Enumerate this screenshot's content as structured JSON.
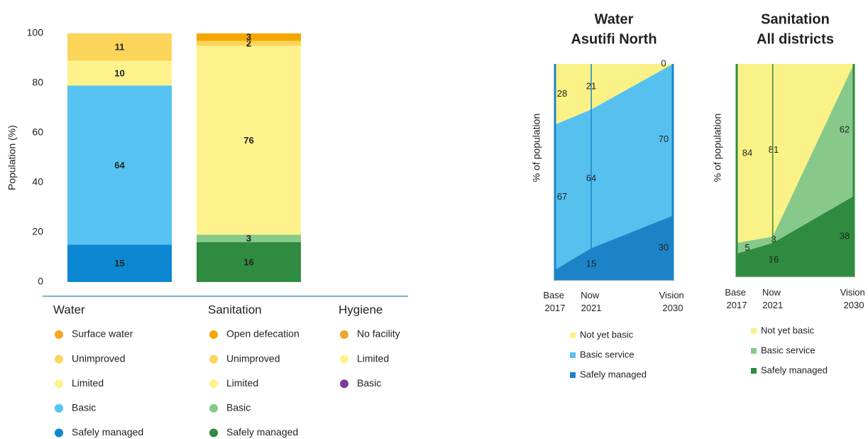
{
  "chart_data": [
    {
      "type": "stacked_bar",
      "y_label": "Population (%)",
      "ylim": [
        0,
        100
      ],
      "yticks": [
        0,
        20,
        40,
        60,
        80,
        100
      ],
      "groups": [
        {
          "name": "Water",
          "series": [
            {
              "name": "Surface water",
              "color": "#f4a81d"
            },
            {
              "name": "Unimproved",
              "color": "#fdd55b",
              "value": 11
            },
            {
              "name": "Limited",
              "color": "#fef28c",
              "value": 10
            },
            {
              "name": "Basic",
              "color": "#56c3f3",
              "value": 64
            },
            {
              "name": "Safely managed",
              "color": "#0b88d1",
              "value": 15
            }
          ]
        },
        {
          "name": "Sanitation",
          "series": [
            {
              "name": "Open defecation",
              "color": "#f5a700",
              "value": 3
            },
            {
              "name": "Unimproved",
              "color": "#fdd55b",
              "value": 2
            },
            {
              "name": "Limited",
              "color": "#fef28c",
              "value": 76
            },
            {
              "name": "Basic",
              "color": "#86c98a",
              "value": 3
            },
            {
              "name": "Safely managed",
              "color": "#2f8b3f",
              "value": 16
            }
          ]
        },
        {
          "name": "Hygiene",
          "series": [
            {
              "name": "No facility",
              "color": "#f0a52c"
            },
            {
              "name": "Limited",
              "color": "#fef28c"
            },
            {
              "name": "Basic",
              "color": "#7b3b96"
            }
          ]
        }
      ]
    },
    {
      "type": "stacked_area",
      "title": "Water",
      "subtitle": "Asutifi North",
      "title_color": "#5bc0ec",
      "y_label": "% of population",
      "x": [
        2017,
        2021,
        2030
      ],
      "xlim": [
        2017,
        2030
      ],
      "ylim": [
        0,
        100
      ],
      "xticks": [
        {
          "value": 2017,
          "label": "Base 2017"
        },
        {
          "value": 2021,
          "label": "Now 2021"
        },
        {
          "value": 2030,
          "label": "Vision 2030"
        }
      ],
      "series": [
        {
          "name": "Safely managed",
          "color": "#1c84c6",
          "values": [
            5,
            15,
            30
          ],
          "value_labels": [
            null,
            "15",
            "30"
          ]
        },
        {
          "name": "Basic service",
          "color": "#56c1ef",
          "values": [
            67,
            64,
            70
          ]
        },
        {
          "name": "Not yet basic",
          "color": "#fbf287",
          "values": [
            28,
            21,
            0
          ]
        }
      ]
    },
    {
      "type": "stacked_area",
      "title": "Sanitation",
      "subtitle": "All districts",
      "title_color": "#7dc483",
      "y_label": "% of population",
      "x": [
        2017,
        2021,
        2030
      ],
      "xlim": [
        2017,
        2030
      ],
      "ylim": [
        0,
        100
      ],
      "xticks": [
        {
          "value": 2017,
          "label": "Base 2017"
        },
        {
          "value": 2021,
          "label": "Now 2021"
        },
        {
          "value": 2030,
          "label": "Vision 2030"
        }
      ],
      "series": [
        {
          "name": "Safely managed",
          "color": "#2f8b3f",
          "values": [
            11,
            16,
            38
          ],
          "value_labels": [
            null,
            "16",
            "38"
          ]
        },
        {
          "name": "Basic service",
          "color": "#86c98a",
          "values": [
            5,
            3,
            62
          ]
        },
        {
          "name": "Not yet basic",
          "color": "#fbf287",
          "values": [
            84,
            81,
            0
          ],
          "value_labels": [
            "84",
            "81",
            null
          ]
        }
      ]
    }
  ]
}
